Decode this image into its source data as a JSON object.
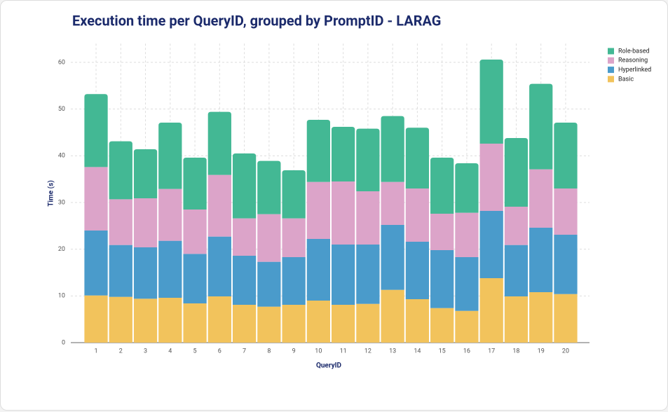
{
  "chart_data": {
    "type": "stacked_bar",
    "title": "Execution time per QueryID, grouped by PromptID - LARAG",
    "x_label": "QueryID",
    "y_label": "Time (s)",
    "categories": [
      "1",
      "2",
      "3",
      "4",
      "5",
      "6",
      "7",
      "8",
      "9",
      "10",
      "11",
      "12",
      "13",
      "14",
      "15",
      "16",
      "17",
      "18",
      "19",
      "20"
    ],
    "series": [
      {
        "name": "Basic",
        "color": "#f2c35c",
        "values": [
          10.1,
          9.8,
          9.4,
          9.6,
          8.4,
          9.9,
          8.1,
          7.7,
          8.1,
          9.0,
          8.1,
          8.3,
          11.3,
          9.3,
          7.4,
          6.8,
          13.8,
          9.9,
          10.8,
          10.4
        ]
      },
      {
        "name": "Hyperlinked",
        "color": "#4a9bcb",
        "values": [
          13.9,
          11.1,
          11.0,
          12.2,
          10.6,
          12.8,
          10.5,
          9.6,
          10.2,
          13.2,
          12.9,
          12.7,
          13.9,
          12.3,
          12.4,
          11.5,
          14.4,
          11.0,
          13.8,
          12.7
        ]
      },
      {
        "name": "Reasoning",
        "color": "#dca4c9",
        "values": [
          13.6,
          9.8,
          10.5,
          11.1,
          9.5,
          13.2,
          8.0,
          10.2,
          8.3,
          12.2,
          13.5,
          11.4,
          9.2,
          11.4,
          7.8,
          9.5,
          14.4,
          8.2,
          12.5,
          9.9
        ]
      },
      {
        "name": "Role-based",
        "color": "#43b894",
        "values": [
          15.6,
          12.4,
          10.5,
          14.2,
          11.1,
          13.5,
          13.9,
          11.4,
          10.3,
          13.3,
          11.7,
          13.4,
          14.1,
          13.0,
          12.0,
          10.6,
          18.0,
          14.7,
          18.3,
          14.1
        ]
      }
    ],
    "ylim": [
      0,
      64
    ],
    "yticks": [
      0,
      10,
      20,
      30,
      40,
      50,
      60
    ],
    "grid": true,
    "legend": "top-right"
  }
}
